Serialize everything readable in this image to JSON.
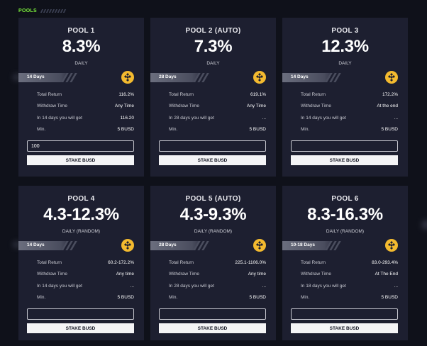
{
  "header": {
    "title": "POOLS"
  },
  "stake_label": "STAKE BUSD",
  "coin_icon": "busd-coin-icon",
  "colors": {
    "accent": "#7cf33c",
    "card": "#1d1f30",
    "background": "#0f111a",
    "coin": "#f3ba2f"
  },
  "pools": [
    {
      "name": "POOL 1",
      "rate": "8.3%",
      "period": "DAILY",
      "days": "14 Days",
      "stats": [
        {
          "label": "Total Return",
          "value": "116.2%"
        },
        {
          "label": "Withdraw Time",
          "value": "Any Time"
        },
        {
          "label": "In 14 days you will get",
          "value": "116.20"
        },
        {
          "label": "Min.",
          "value": "5 BUSD"
        }
      ],
      "input_value": "100"
    },
    {
      "name": "POOL 2 (AUTO)",
      "rate": "7.3%",
      "period": "DAILY",
      "days": "28 Days",
      "stats": [
        {
          "label": "Total Return",
          "value": "619.1%"
        },
        {
          "label": "Withdraw Time",
          "value": "Any Time"
        },
        {
          "label": "In 28 days you will get",
          "value": "..."
        },
        {
          "label": "Min.",
          "value": "5 BUSD"
        }
      ],
      "input_value": ""
    },
    {
      "name": "POOL 3",
      "rate": "12.3%",
      "period": "DAILY",
      "days": "14 Days",
      "stats": [
        {
          "label": "Total Return",
          "value": "172.2%"
        },
        {
          "label": "Withdraw Time",
          "value": "At the end"
        },
        {
          "label": "In 14 days you will get",
          "value": "..."
        },
        {
          "label": "Min.",
          "value": "5 BUSD"
        }
      ],
      "input_value": ""
    },
    {
      "name": "POOL 4",
      "rate": "4.3-12.3%",
      "period": "DAILY (RANDOM)",
      "days": "14 Days",
      "stats": [
        {
          "label": "Total Return",
          "value": "60.2-172.2%"
        },
        {
          "label": "Withdraw Time",
          "value": "Any time"
        },
        {
          "label": "In 14 days you will get",
          "value": "..."
        },
        {
          "label": "Min.",
          "value": "5 BUSD"
        }
      ],
      "input_value": ""
    },
    {
      "name": "POOL 5 (AUTO)",
      "rate": "4.3-9.3%",
      "period": "DAILY (RANDOM)",
      "days": "28 Days",
      "stats": [
        {
          "label": "Total Return",
          "value": "225.1-1106.0%"
        },
        {
          "label": "Withdraw Time",
          "value": "Any time"
        },
        {
          "label": "In 28 days you will get",
          "value": "..."
        },
        {
          "label": "Min.",
          "value": "5 BUSD"
        }
      ],
      "input_value": ""
    },
    {
      "name": "POOL 6",
      "rate": "8.3-16.3%",
      "period": "DAILY (RANDOM)",
      "days": "10-18 Days",
      "stats": [
        {
          "label": "Total Return",
          "value": "83.0-293.4%"
        },
        {
          "label": "Withdraw Time",
          "value": "At The End"
        },
        {
          "label": "In 18 days you will get",
          "value": "..."
        },
        {
          "label": "Min.",
          "value": "5 BUSD"
        }
      ],
      "input_value": ""
    }
  ]
}
